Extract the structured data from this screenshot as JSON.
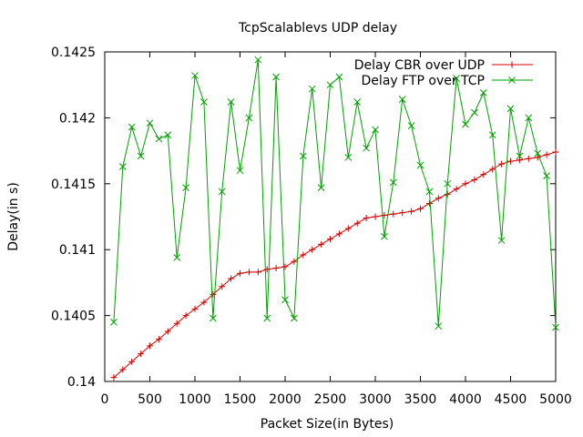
{
  "chart_data": {
    "type": "line",
    "title": "TcpScalablevs UDP delay",
    "xlabel": "Packet Size(in Bytes)",
    "ylabel": "Delay(in s)",
    "xlim": [
      0,
      5000
    ],
    "ylim": [
      0.14,
      0.1425
    ],
    "x_ticks": [
      0,
      500,
      1000,
      1500,
      2000,
      2500,
      3000,
      3500,
      4000,
      4500,
      5000
    ],
    "y_ticks": [
      0.14,
      0.1405,
      0.141,
      0.1415,
      0.142,
      0.1425
    ],
    "y_tick_labels": [
      "0.14",
      "0.1405",
      "0.141",
      "0.1415",
      "0.142",
      "0.1425"
    ],
    "grid": false,
    "legend_position": "top-right",
    "series": [
      {
        "name": "Delay CBR over UDP",
        "color": "#d00000",
        "marker": "plus",
        "points": [
          [
            100,
            0.14003
          ],
          [
            200,
            0.14009
          ],
          [
            300,
            0.14015
          ],
          [
            400,
            0.14021
          ],
          [
            500,
            0.14027
          ],
          [
            600,
            0.14032
          ],
          [
            700,
            0.14038
          ],
          [
            800,
            0.14044
          ],
          [
            900,
            0.1405
          ],
          [
            1000,
            0.14055
          ],
          [
            1100,
            0.1406
          ],
          [
            1200,
            0.14066
          ],
          [
            1300,
            0.14072
          ],
          [
            1400,
            0.14078
          ],
          [
            1500,
            0.14082
          ],
          [
            1600,
            0.14083
          ],
          [
            1700,
            0.14083
          ],
          [
            1800,
            0.14085
          ],
          [
            1900,
            0.14086
          ],
          [
            2000,
            0.14087
          ],
          [
            2100,
            0.14091
          ],
          [
            2200,
            0.14096
          ],
          [
            2300,
            0.141
          ],
          [
            2400,
            0.14104
          ],
          [
            2500,
            0.14108
          ],
          [
            2600,
            0.14112
          ],
          [
            2700,
            0.14116
          ],
          [
            2800,
            0.1412
          ],
          [
            2900,
            0.14124
          ],
          [
            3000,
            0.14125
          ],
          [
            3100,
            0.14126
          ],
          [
            3200,
            0.14127
          ],
          [
            3300,
            0.14128
          ],
          [
            3400,
            0.14129
          ],
          [
            3500,
            0.14131
          ],
          [
            3600,
            0.14135
          ],
          [
            3700,
            0.14139
          ],
          [
            3800,
            0.14142
          ],
          [
            3900,
            0.14146
          ],
          [
            4000,
            0.1415
          ],
          [
            4100,
            0.14153
          ],
          [
            4200,
            0.14157
          ],
          [
            4300,
            0.14161
          ],
          [
            4400,
            0.14165
          ],
          [
            4500,
            0.14167
          ],
          [
            4600,
            0.14168
          ],
          [
            4700,
            0.14169
          ],
          [
            4800,
            0.1417
          ],
          [
            4900,
            0.14172
          ],
          [
            5000,
            0.14174
          ]
        ]
      },
      {
        "name": "Delay FTP over TCP",
        "color": "#00a000",
        "marker": "cross",
        "points": [
          [
            100,
            0.14045
          ],
          [
            200,
            0.14163
          ],
          [
            300,
            0.14193
          ],
          [
            400,
            0.14171
          ],
          [
            500,
            0.14196
          ],
          [
            600,
            0.14184
          ],
          [
            700,
            0.14187
          ],
          [
            800,
            0.14094
          ],
          [
            900,
            0.14147
          ],
          [
            1000,
            0.14232
          ],
          [
            1100,
            0.14212
          ],
          [
            1200,
            0.14048
          ],
          [
            1300,
            0.14144
          ],
          [
            1400,
            0.14212
          ],
          [
            1500,
            0.1416
          ],
          [
            1600,
            0.142
          ],
          [
            1700,
            0.14244
          ],
          [
            1800,
            0.14048
          ],
          [
            1900,
            0.14231
          ],
          [
            2000,
            0.14062
          ],
          [
            2100,
            0.14048
          ],
          [
            2200,
            0.14171
          ],
          [
            2300,
            0.14222
          ],
          [
            2400,
            0.14147
          ],
          [
            2500,
            0.14225
          ],
          [
            2600,
            0.14231
          ],
          [
            2700,
            0.1417
          ],
          [
            2800,
            0.14212
          ],
          [
            2900,
            0.14177
          ],
          [
            3000,
            0.14191
          ],
          [
            3100,
            0.1411
          ],
          [
            3200,
            0.14151
          ],
          [
            3300,
            0.14214
          ],
          [
            3400,
            0.14194
          ],
          [
            3500,
            0.14164
          ],
          [
            3600,
            0.14144
          ],
          [
            3700,
            0.14042
          ],
          [
            3800,
            0.1415
          ],
          [
            3900,
            0.1423
          ],
          [
            4000,
            0.14195
          ],
          [
            4100,
            0.14204
          ],
          [
            4200,
            0.14219
          ],
          [
            4300,
            0.14187
          ],
          [
            4400,
            0.14107
          ],
          [
            4500,
            0.14207
          ],
          [
            4600,
            0.14171
          ],
          [
            4700,
            0.142
          ],
          [
            4800,
            0.14173
          ],
          [
            4900,
            0.14156
          ],
          [
            5000,
            0.14041
          ]
        ]
      }
    ]
  }
}
